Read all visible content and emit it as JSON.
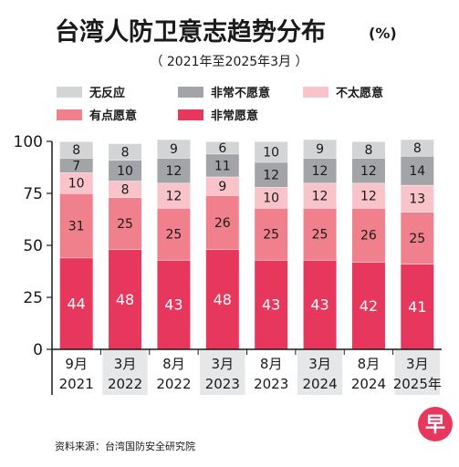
{
  "chart_data": {
    "type": "bar",
    "stacked": true,
    "title": "台湾人防卫意志趋势分布",
    "title_unit": "(%)",
    "subtitle": "（ 2021年至2025年3月 ）",
    "ylim": [
      0,
      100
    ],
    "yticks": [
      "0",
      "25",
      "50",
      "75",
      "100"
    ],
    "categories": [
      {
        "line1": "9月",
        "line2": "2021",
        "shaded": false
      },
      {
        "line1": "3月",
        "line2": "2022",
        "shaded": true
      },
      {
        "line1": "8月",
        "line2": "2022",
        "shaded": false
      },
      {
        "line1": "3月",
        "line2": "2023",
        "shaded": true
      },
      {
        "line1": "8月",
        "line2": "2023",
        "shaded": false
      },
      {
        "line1": "3月",
        "line2": "2024",
        "shaded": true
      },
      {
        "line1": "8月",
        "line2": "2024",
        "shaded": false
      },
      {
        "line1": "3月",
        "line2": "2025年",
        "shaded": true
      }
    ],
    "series": [
      {
        "name": "非常愿意",
        "color": "#e8375c",
        "label_color": "#ffffff",
        "values": [
          44,
          48,
          43,
          48,
          43,
          43,
          42,
          41
        ]
      },
      {
        "name": "有点愿意",
        "color": "#f0808c",
        "label_color": "#1a1a1a",
        "values": [
          31,
          25,
          25,
          26,
          25,
          25,
          26,
          25
        ]
      },
      {
        "name": "不太愿意",
        "color": "#f8c3c9",
        "label_color": "#1a1a1a",
        "values": [
          10,
          8,
          12,
          9,
          10,
          12,
          12,
          13
        ]
      },
      {
        "name": "非常不愿意",
        "color": "#a3a4a7",
        "label_color": "#1a1a1a",
        "values": [
          7,
          10,
          12,
          11,
          12,
          12,
          12,
          14
        ]
      },
      {
        "name": "无反应",
        "color": "#d3d4d6",
        "label_color": "#1a1a1a",
        "values": [
          8,
          8,
          9,
          6,
          10,
          9,
          8,
          8
        ]
      }
    ],
    "legend_order": [
      "无反应",
      "非常不愿意",
      "不太愿意",
      "有点愿意",
      "非常愿意"
    ],
    "legend_placement": "top",
    "grid": false
  },
  "source": "资料来源：台湾国防安全研究院",
  "logo": {
    "char": "早",
    "color": "#e8375c"
  }
}
